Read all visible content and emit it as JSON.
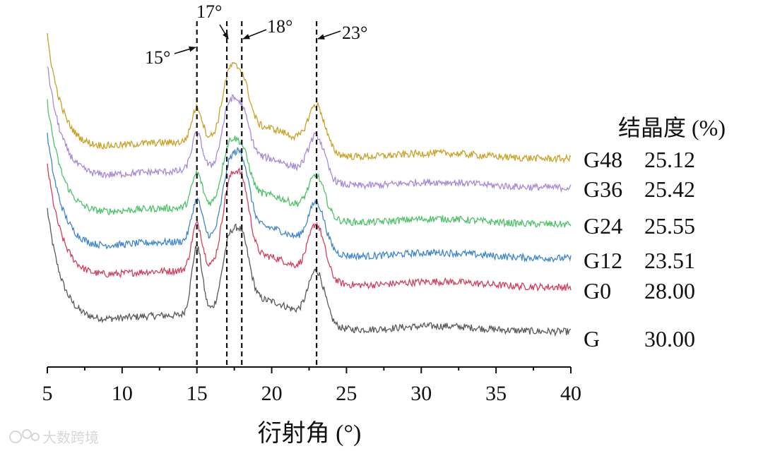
{
  "chart_data": {
    "type": "line",
    "title": "",
    "xlabel": "衍射角 (°)",
    "ylabel": "",
    "xlim": [
      5,
      40
    ],
    "x_ticks": [
      5,
      10,
      15,
      20,
      25,
      30,
      35,
      40
    ],
    "grid": false,
    "offset_stacked": true,
    "peak_markers": [
      {
        "x": 15,
        "label": "15°"
      },
      {
        "x": 17,
        "label": "17°"
      },
      {
        "x": 18,
        "label": "18°"
      },
      {
        "x": 23,
        "label": "23°"
      }
    ],
    "legend_header": "结晶度 (%)",
    "series": [
      {
        "name": "G48",
        "crystallinity": "25.12",
        "color": "#c9a227"
      },
      {
        "name": "G36",
        "crystallinity": "25.42",
        "color": "#a98ad6"
      },
      {
        "name": "G24",
        "crystallinity": "25.55",
        "color": "#4fc36a"
      },
      {
        "name": "G12",
        "crystallinity": "23.51",
        "color": "#3f86cf"
      },
      {
        "name": "G0",
        "crystallinity": "28.00",
        "color": "#d2405e"
      },
      {
        "name": "G",
        "crystallinity": "30.00",
        "color": "#5a5a5a"
      }
    ]
  },
  "watermark": "大数跨境"
}
